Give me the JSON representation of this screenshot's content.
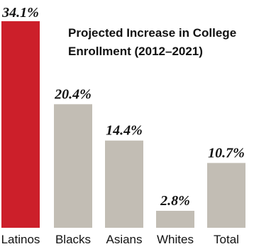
{
  "chart_data": {
    "type": "bar",
    "title_lines": [
      "Projected Increase in College",
      "Enrollment (2012–2021)"
    ],
    "categories": [
      "Latinos",
      "Blacks",
      "Asians",
      "Whites",
      "Total"
    ],
    "values": [
      34.1,
      20.4,
      14.4,
      2.8,
      10.7
    ],
    "value_labels": [
      "34.1%",
      "20.4%",
      "14.4%",
      "2.8%",
      "10.7%"
    ],
    "ylim": [
      0,
      34.1
    ],
    "grid": false,
    "legend": "none",
    "colors": {
      "highlight": "#cc1f2a",
      "default": "#c2bdb4"
    },
    "highlight_index": 0
  }
}
